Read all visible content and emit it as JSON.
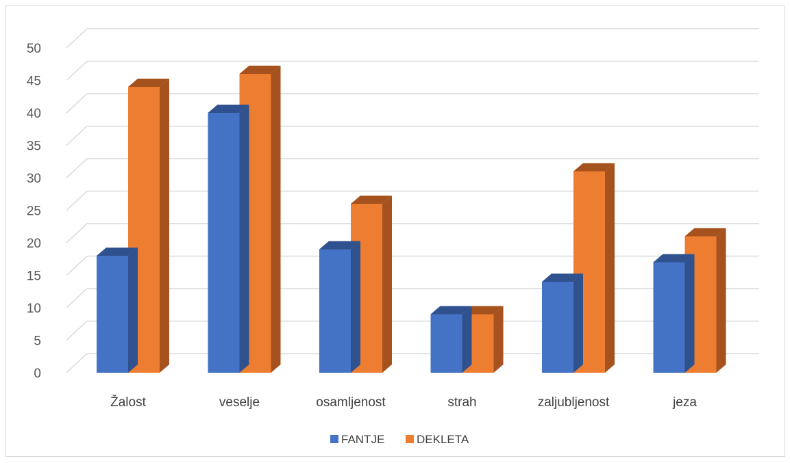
{
  "chart_data": {
    "type": "bar",
    "style": "3d-clustered-column",
    "categories": [
      "Žalost",
      "veselje",
      "osamljenost",
      "strah",
      "zaljubljenost",
      "jeza"
    ],
    "series": [
      {
        "name": "FANTJE",
        "color": "#4472C4",
        "side_color": "#2F528F",
        "values": [
          18,
          40,
          19,
          9,
          14,
          17
        ]
      },
      {
        "name": "DEKLETA",
        "color": "#ED7D31",
        "side_color": "#A5521E",
        "values": [
          44,
          46,
          26,
          9,
          31,
          21
        ]
      }
    ],
    "ylim": [
      0,
      50
    ],
    "yticks": [
      0,
      5,
      10,
      15,
      20,
      25,
      30,
      35,
      40,
      45,
      50
    ],
    "grid": true,
    "legend_position": "bottom"
  }
}
